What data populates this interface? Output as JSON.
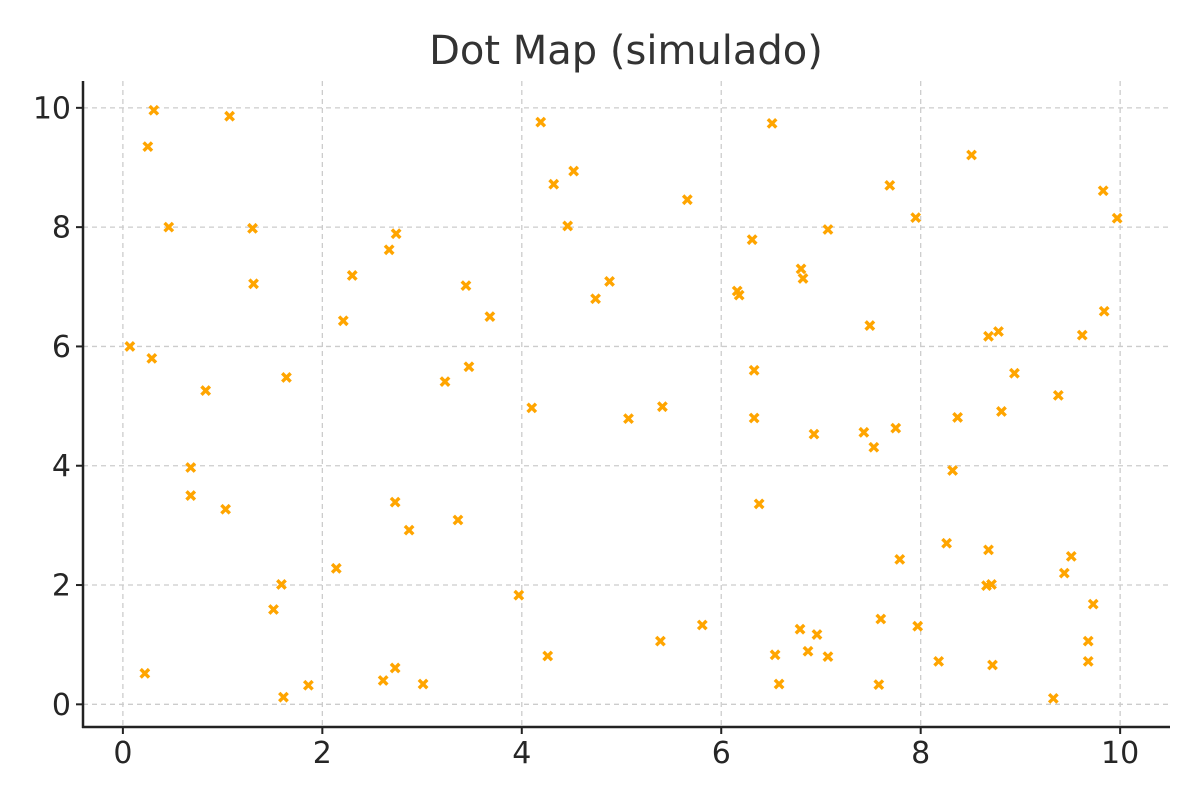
{
  "chart_data": {
    "type": "scatter",
    "title": "Dot Map (simulado)",
    "xlabel": "",
    "ylabel": "",
    "xlim": [
      -0.4,
      10.5
    ],
    "ylim": [
      -0.38,
      10.45
    ],
    "x_ticks": [
      0,
      2,
      4,
      6,
      8,
      10
    ],
    "y_ticks": [
      0,
      2,
      4,
      6,
      8,
      10
    ],
    "grid": true,
    "marker": "x",
    "color": "#FFA500",
    "points": [
      [
        0.31,
        9.96
      ],
      [
        0.25,
        9.35
      ],
      [
        1.07,
        9.86
      ],
      [
        0.46,
        8.0
      ],
      [
        1.3,
        7.98
      ],
      [
        1.31,
        7.05
      ],
      [
        0.07,
        6.0
      ],
      [
        0.29,
        5.8
      ],
      [
        0.83,
        5.26
      ],
      [
        1.64,
        5.48
      ],
      [
        0.68,
        3.97
      ],
      [
        0.68,
        3.5
      ],
      [
        1.03,
        3.27
      ],
      [
        1.59,
        2.01
      ],
      [
        1.51,
        1.59
      ],
      [
        0.22,
        0.52
      ],
      [
        1.61,
        0.12
      ],
      [
        1.86,
        0.32
      ],
      [
        2.3,
        7.19
      ],
      [
        2.21,
        6.43
      ],
      [
        2.67,
        7.62
      ],
      [
        2.74,
        7.89
      ],
      [
        2.73,
        3.39
      ],
      [
        2.87,
        2.92
      ],
      [
        2.14,
        2.28
      ],
      [
        2.61,
        0.4
      ],
      [
        2.73,
        0.61
      ],
      [
        3.01,
        0.34
      ],
      [
        3.44,
        7.02
      ],
      [
        3.68,
        6.5
      ],
      [
        3.47,
        5.66
      ],
      [
        3.23,
        5.41
      ],
      [
        3.36,
        3.09
      ],
      [
        4.19,
        9.76
      ],
      [
        4.32,
        8.72
      ],
      [
        4.52,
        8.94
      ],
      [
        4.46,
        8.02
      ],
      [
        4.88,
        7.09
      ],
      [
        4.74,
        6.8
      ],
      [
        4.1,
        4.97
      ],
      [
        3.97,
        1.83
      ],
      [
        4.26,
        0.81
      ],
      [
        5.66,
        8.46
      ],
      [
        5.07,
        4.79
      ],
      [
        5.41,
        4.99
      ],
      [
        5.81,
        1.33
      ],
      [
        5.39,
        1.06
      ],
      [
        6.51,
        9.74
      ],
      [
        6.31,
        7.79
      ],
      [
        6.16,
        6.93
      ],
      [
        6.18,
        6.86
      ],
      [
        6.33,
        5.6
      ],
      [
        6.33,
        4.8
      ],
      [
        6.38,
        3.36
      ],
      [
        6.54,
        0.83
      ],
      [
        6.58,
        0.34
      ],
      [
        7.07,
        7.96
      ],
      [
        6.8,
        7.3
      ],
      [
        6.82,
        7.14
      ],
      [
        6.93,
        4.53
      ],
      [
        6.79,
        1.26
      ],
      [
        6.96,
        1.17
      ],
      [
        6.87,
        0.89
      ],
      [
        7.07,
        0.8
      ],
      [
        7.69,
        8.7
      ],
      [
        7.49,
        6.35
      ],
      [
        7.43,
        4.56
      ],
      [
        7.53,
        4.31
      ],
      [
        7.75,
        4.63
      ],
      [
        7.79,
        2.43
      ],
      [
        7.6,
        1.43
      ],
      [
        7.58,
        0.33
      ],
      [
        8.51,
        9.21
      ],
      [
        7.95,
        8.16
      ],
      [
        8.68,
        6.17
      ],
      [
        8.78,
        6.25
      ],
      [
        8.94,
        5.55
      ],
      [
        8.37,
        4.81
      ],
      [
        8.81,
        4.91
      ],
      [
        8.32,
        3.92
      ],
      [
        8.26,
        2.7
      ],
      [
        8.68,
        2.59
      ],
      [
        8.66,
        1.99
      ],
      [
        8.71,
        2.01
      ],
      [
        7.97,
        1.31
      ],
      [
        8.18,
        0.72
      ],
      [
        8.72,
        0.66
      ],
      [
        9.83,
        8.61
      ],
      [
        9.97,
        8.15
      ],
      [
        9.84,
        6.59
      ],
      [
        9.62,
        6.19
      ],
      [
        9.38,
        5.18
      ],
      [
        9.51,
        2.48
      ],
      [
        9.44,
        2.2
      ],
      [
        9.73,
        1.68
      ],
      [
        9.68,
        1.06
      ],
      [
        9.68,
        0.72
      ],
      [
        9.33,
        0.1
      ]
    ]
  }
}
